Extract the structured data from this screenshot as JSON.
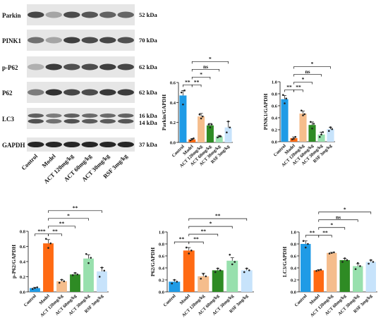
{
  "colors": {
    "control": "#1f9be6",
    "model": "#ff6a13",
    "act120": "#f5bd8c",
    "act60": "#2e8b24",
    "act30": "#98e0ad",
    "rsf3": "#c7e3fb"
  },
  "blot": {
    "rows": [
      {
        "label": "Parkin",
        "kda": "52 kDa"
      },
      {
        "label": "PINK1",
        "kda": "70 kDa"
      },
      {
        "label": "p-P62",
        "kda": "62 kDa"
      },
      {
        "label": "P62",
        "kda": "62 kDa"
      },
      {
        "label": "LC3",
        "kda": "16 kDa",
        "kda2": "14 kDa"
      },
      {
        "label": "GAPDH",
        "kda": "37 kDa"
      }
    ],
    "lanes": [
      "Control",
      "Model",
      "ACT 120mg/kg",
      "ACT 60mg/kg",
      "ACT 30mg/kg",
      "RSF 3mg/kg"
    ],
    "intensities": [
      [
        0.75,
        0.3,
        0.72,
        0.68,
        0.62,
        0.6
      ],
      [
        0.55,
        0.3,
        0.78,
        0.72,
        0.75,
        0.7
      ],
      [
        0.25,
        0.8,
        0.7,
        0.72,
        0.78,
        0.75
      ],
      [
        0.5,
        0.85,
        0.75,
        0.72,
        0.82,
        0.8
      ],
      [
        0.7,
        0.55,
        0.7,
        0.65,
        0.65,
        0.68
      ],
      [
        0.9,
        0.9,
        0.9,
        0.9,
        0.9,
        0.9
      ]
    ]
  },
  "chart_data": [
    {
      "type": "bar",
      "ylabel": "Parkin/GAPDH",
      "ylim": [
        0,
        0.6
      ],
      "yticks": [
        "0.0",
        "0.2",
        "0.4",
        "0.6"
      ],
      "categories": [
        "Control",
        "Model",
        "ACT 120mg/kg",
        "ACT 60mg/kg",
        "ACT 30mg/kg",
        "RSF 3mg/kg"
      ],
      "values": [
        0.47,
        0.03,
        0.26,
        0.17,
        0.06,
        0.15
      ],
      "errors": [
        0.05,
        0.01,
        0.03,
        0.02,
        0.01,
        0.06
      ],
      "points": [
        [
          0.5,
          0.38,
          0.52
        ],
        [
          0.02,
          0.03,
          0.04
        ],
        [
          0.28,
          0.24,
          0.26
        ],
        [
          0.18,
          0.15,
          0.18
        ],
        [
          0.05,
          0.06,
          0.06
        ],
        [
          0.1,
          0.21,
          0.15
        ]
      ],
      "significance": [
        {
          "from": 0,
          "to": 1,
          "label": "**"
        },
        {
          "from": 1,
          "to": 2,
          "label": "**"
        },
        {
          "from": 1,
          "to": 3,
          "label": "*"
        },
        {
          "from": 1,
          "to": 4,
          "label": "ns"
        },
        {
          "from": 1,
          "to": 5,
          "label": "*"
        }
      ]
    },
    {
      "type": "bar",
      "ylabel": "PINK1/GAPDH",
      "ylim": [
        0,
        1.0
      ],
      "yticks": [
        "0.0",
        "0.2",
        "0.4",
        "0.6",
        "0.8",
        "1.0"
      ],
      "categories": [
        "Control",
        "Model",
        "ACT 120mg/kg",
        "ACT 60mg/kg",
        "ACT 30mg/kg",
        "RSF 3mg/kg"
      ],
      "values": [
        0.71,
        0.06,
        0.47,
        0.28,
        0.12,
        0.21
      ],
      "errors": [
        0.06,
        0.02,
        0.04,
        0.05,
        0.04,
        0.03
      ],
      "points": [
        [
          0.78,
          0.64,
          0.72
        ],
        [
          0.04,
          0.05,
          0.08
        ],
        [
          0.52,
          0.44,
          0.46
        ],
        [
          0.33,
          0.22,
          0.3
        ],
        [
          0.08,
          0.12,
          0.16
        ],
        [
          0.18,
          0.24,
          0.21
        ]
      ],
      "significance": [
        {
          "from": 0,
          "to": 1,
          "label": "**"
        },
        {
          "from": 1,
          "to": 2,
          "label": "**"
        },
        {
          "from": 1,
          "to": 3,
          "label": "*"
        },
        {
          "from": 1,
          "to": 4,
          "label": "ns"
        },
        {
          "from": 1,
          "to": 5,
          "label": "*"
        }
      ]
    },
    {
      "type": "bar",
      "ylabel": "p-P62/GAPDH",
      "ylim": [
        0,
        0.8
      ],
      "yticks": [
        "0.0",
        "0.2",
        "0.4",
        "0.6",
        "0.8"
      ],
      "categories": [
        "Control",
        "Model",
        "ACT 120mg/kg",
        "ACT 60mg/kg",
        "ACT 30mg/kg",
        "RSF 3mg/kg"
      ],
      "values": [
        0.05,
        0.64,
        0.14,
        0.23,
        0.44,
        0.27
      ],
      "errors": [
        0.01,
        0.05,
        0.02,
        0.02,
        0.05,
        0.05
      ],
      "points": [
        [
          0.04,
          0.05,
          0.06
        ],
        [
          0.7,
          0.58,
          0.64
        ],
        [
          0.12,
          0.16,
          0.14
        ],
        [
          0.22,
          0.25,
          0.23
        ],
        [
          0.5,
          0.38,
          0.45
        ],
        [
          0.2,
          0.32,
          0.28
        ]
      ],
      "significance": [
        {
          "from": 0,
          "to": 1,
          "label": "***"
        },
        {
          "from": 1,
          "to": 2,
          "label": "**"
        },
        {
          "from": 1,
          "to": 3,
          "label": "**"
        },
        {
          "from": 1,
          "to": 4,
          "label": "*"
        },
        {
          "from": 1,
          "to": 5,
          "label": "**"
        }
      ]
    },
    {
      "type": "bar",
      "ylabel": "P62/GAPDH",
      "ylim": [
        0,
        1.0
      ],
      "yticks": [
        "0.0",
        "0.2",
        "0.4",
        "0.6",
        "0.8",
        "1.0"
      ],
      "categories": [
        "Control",
        "Model",
        "ACT 120mg/kg",
        "ACT 60mg/kg",
        "ACT 30mg/kg",
        "RSF 3mg/kg"
      ],
      "values": [
        0.17,
        0.69,
        0.26,
        0.36,
        0.52,
        0.36
      ],
      "errors": [
        0.03,
        0.05,
        0.05,
        0.03,
        0.05,
        0.03
      ],
      "points": [
        [
          0.14,
          0.2,
          0.17
        ],
        [
          0.74,
          0.64,
          0.69
        ],
        [
          0.22,
          0.3,
          0.26
        ],
        [
          0.33,
          0.39,
          0.36
        ],
        [
          0.62,
          0.46,
          0.5
        ],
        [
          0.33,
          0.39,
          0.36
        ]
      ],
      "significance": [
        {
          "from": 0,
          "to": 1,
          "label": "**"
        },
        {
          "from": 1,
          "to": 2,
          "label": "**"
        },
        {
          "from": 1,
          "to": 3,
          "label": "**"
        },
        {
          "from": 1,
          "to": 4,
          "label": "*"
        },
        {
          "from": 1,
          "to": 5,
          "label": "**"
        }
      ]
    },
    {
      "type": "bar",
      "ylabel": "LC3/GAPDH",
      "ylim": [
        0,
        1.0
      ],
      "yticks": [
        "0.0",
        "0.2",
        "0.4",
        "0.6",
        "0.8",
        "1.0"
      ],
      "categories": [
        "Control",
        "Model",
        "ACT 120mg/kg",
        "ACT 60mg/kg",
        "ACT 30mg/kg",
        "RSF 3mg/kg"
      ],
      "values": [
        0.8,
        0.36,
        0.65,
        0.53,
        0.43,
        0.5
      ],
      "errors": [
        0.05,
        0.01,
        0.01,
        0.03,
        0.04,
        0.03
      ],
      "points": [
        [
          0.85,
          0.74,
          0.8
        ],
        [
          0.35,
          0.36,
          0.37
        ],
        [
          0.64,
          0.65,
          0.66
        ],
        [
          0.5,
          0.56,
          0.53
        ],
        [
          0.38,
          0.48,
          0.43
        ],
        [
          0.47,
          0.53,
          0.5
        ]
      ],
      "significance": [
        {
          "from": 0,
          "to": 1,
          "label": "**"
        },
        {
          "from": 1,
          "to": 2,
          "label": "**"
        },
        {
          "from": 1,
          "to": 3,
          "label": "*"
        },
        {
          "from": 1,
          "to": 4,
          "label": "ns"
        },
        {
          "from": 1,
          "to": 5,
          "label": "*"
        }
      ]
    }
  ]
}
